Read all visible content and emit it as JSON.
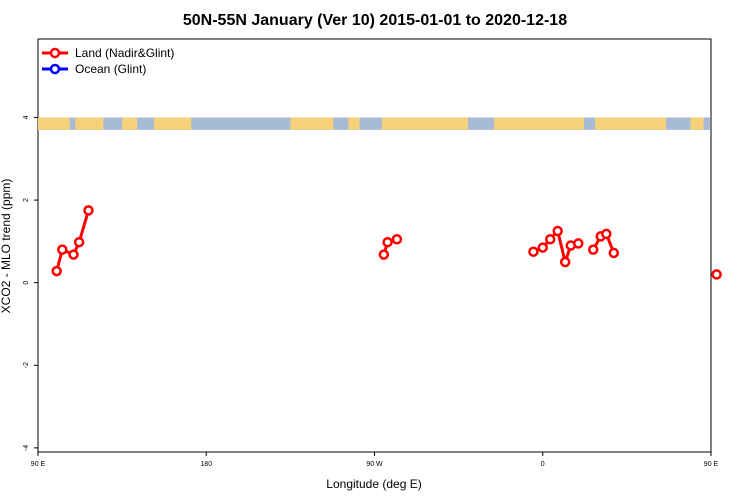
{
  "chart_data": {
    "type": "line",
    "title": "50N-55N January (Ver 10)   2015-01-01 to 2020-12-18",
    "xlabel": "Longitude (deg E)",
    "ylabel": "XCO2 - MLO trend (ppm)",
    "xlim": [
      90,
      450
    ],
    "ylim": [
      -4.1,
      5.9
    ],
    "x_ticks": [
      {
        "value": 90,
        "label": "90 E"
      },
      {
        "value": 180,
        "label": "180"
      },
      {
        "value": 270,
        "label": "90 W"
      },
      {
        "value": 360,
        "label": "0"
      },
      {
        "value": 450,
        "label": "90 E"
      },
      {
        "value": 540,
        "label": "180"
      }
    ],
    "y_ticks": [
      {
        "value": -4,
        "label": "-4"
      },
      {
        "value": -2,
        "label": "-2"
      },
      {
        "value": 0,
        "label": "0"
      },
      {
        "value": 2,
        "label": "2"
      },
      {
        "value": 4,
        "label": "4"
      }
    ],
    "legend_position": "top-left",
    "land_band_y": [
      3.7,
      4.0
    ],
    "land_band_colors": {
      "land": "#f5d27a",
      "ocean": "#a7bad6"
    },
    "series": [
      {
        "name": "Land (Nadir&Glint)",
        "color": "#ff0000",
        "segments": [
          [
            [
              100,
              0.28
            ],
            [
              103,
              0.8
            ],
            [
              109,
              0.68
            ],
            [
              112,
              0.98
            ],
            [
              117,
              1.75
            ]
          ],
          [
            [
              275,
              0.68
            ],
            [
              277,
              0.98
            ],
            [
              282,
              1.05
            ]
          ],
          [
            [
              355,
              0.75
            ],
            [
              360,
              0.85
            ],
            [
              364,
              1.05
            ],
            [
              368,
              1.25
            ],
            [
              372,
              0.5
            ],
            [
              375,
              0.9
            ],
            [
              379,
              0.95
            ]
          ],
          [
            [
              387,
              0.8
            ],
            [
              391,
              1.12
            ],
            [
              394,
              1.18
            ],
            [
              398,
              0.72
            ]
          ],
          [
            [
              453,
              0.2
            ]
          ],
          [
            [
              479,
              0.28
            ],
            [
              482,
              0.8
            ],
            [
              488,
              0.68
            ],
            [
              492,
              0.98
            ],
            [
              497,
              1.75
            ]
          ]
        ]
      },
      {
        "name": "Ocean (Glint)",
        "color": "#0000ff",
        "segments": []
      }
    ]
  }
}
